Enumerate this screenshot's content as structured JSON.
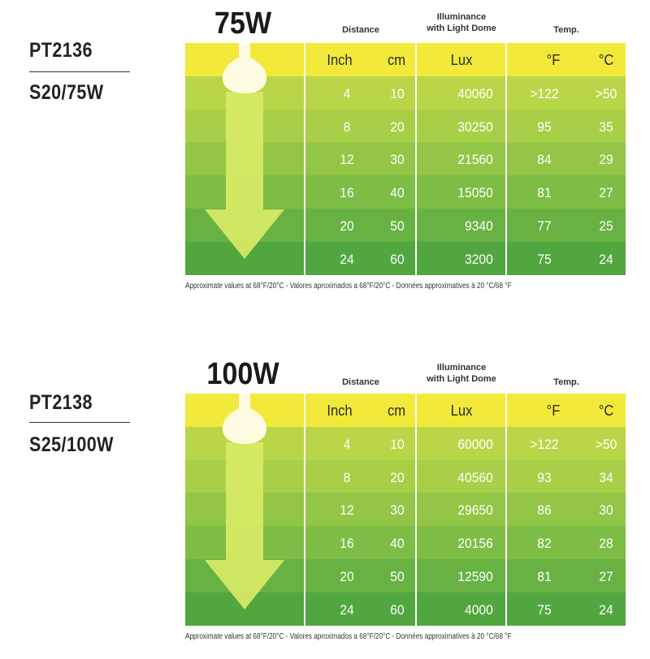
{
  "tables": [
    {
      "id": "75",
      "wattage": "75W",
      "model_code": "PT2136",
      "model_variant": "S20/75W",
      "header_distance": "Distance",
      "header_lux_line1": "Illuminance",
      "header_lux_line2": "with Light Dome",
      "header_temp": "Temp.",
      "sub_inch": "Inch",
      "sub_cm": "cm",
      "sub_lux": "Lux",
      "sub_f": "°F",
      "sub_c": "°C",
      "rows": [
        {
          "inch": "4",
          "cm": "10",
          "lux": "40060",
          "f": ">122",
          "c": ">50"
        },
        {
          "inch": "8",
          "cm": "20",
          "lux": "30250",
          "f": "95",
          "c": "35"
        },
        {
          "inch": "12",
          "cm": "30",
          "lux": "21560",
          "f": "84",
          "c": "29"
        },
        {
          "inch": "16",
          "cm": "40",
          "lux": "15050",
          "f": "81",
          "c": "27"
        },
        {
          "inch": "20",
          "cm": "50",
          "lux": "9340",
          "f": "77",
          "c": "25"
        },
        {
          "inch": "24",
          "cm": "60",
          "lux": "3200",
          "f": "75",
          "c": "24"
        }
      ],
      "note": "Approximate values at 68°F/20°C - Valores aproximados a 68°F/20°C - Données approximatives à 20 °C/68 °F"
    },
    {
      "id": "100",
      "wattage": "100W",
      "model_code": "PT2138",
      "model_variant": "S25/100W",
      "header_distance": "Distance",
      "header_lux_line1": "Illuminance",
      "header_lux_line2": "with Light Dome",
      "header_temp": "Temp.",
      "sub_inch": "Inch",
      "sub_cm": "cm",
      "sub_lux": "Lux",
      "sub_f": "°F",
      "sub_c": "°C",
      "rows": [
        {
          "inch": "4",
          "cm": "10",
          "lux": "60000",
          "f": ">122",
          "c": ">50"
        },
        {
          "inch": "8",
          "cm": "20",
          "lux": "40560",
          "f": "93",
          "c": "34"
        },
        {
          "inch": "12",
          "cm": "30",
          "lux": "29650",
          "f": "86",
          "c": "30"
        },
        {
          "inch": "16",
          "cm": "40",
          "lux": "20156",
          "f": "82",
          "c": "28"
        },
        {
          "inch": "20",
          "cm": "50",
          "lux": "12590",
          "f": "81",
          "c": "27"
        },
        {
          "inch": "24",
          "cm": "60",
          "lux": "4000",
          "f": "75",
          "c": "24"
        }
      ],
      "note": "Approximate values at 68°F/20°C - Valores aproximados a 68°F/20°C - Données approximatives à 20 °C/68 °F"
    }
  ],
  "colors": {
    "header_band": "#f2e93a",
    "row_bands": [
      "#b9d648",
      "#a8cf47",
      "#93c646",
      "#7dbd45",
      "#68b243",
      "#52a640"
    ],
    "arrow": "#d8ea66",
    "bulb": "#fffbe3",
    "text_light": "#ffffff",
    "text_dark": "#2b2b2b"
  },
  "icons": {
    "bulb": "light-bulb-icon",
    "arrow": "down-arrow-icon"
  }
}
